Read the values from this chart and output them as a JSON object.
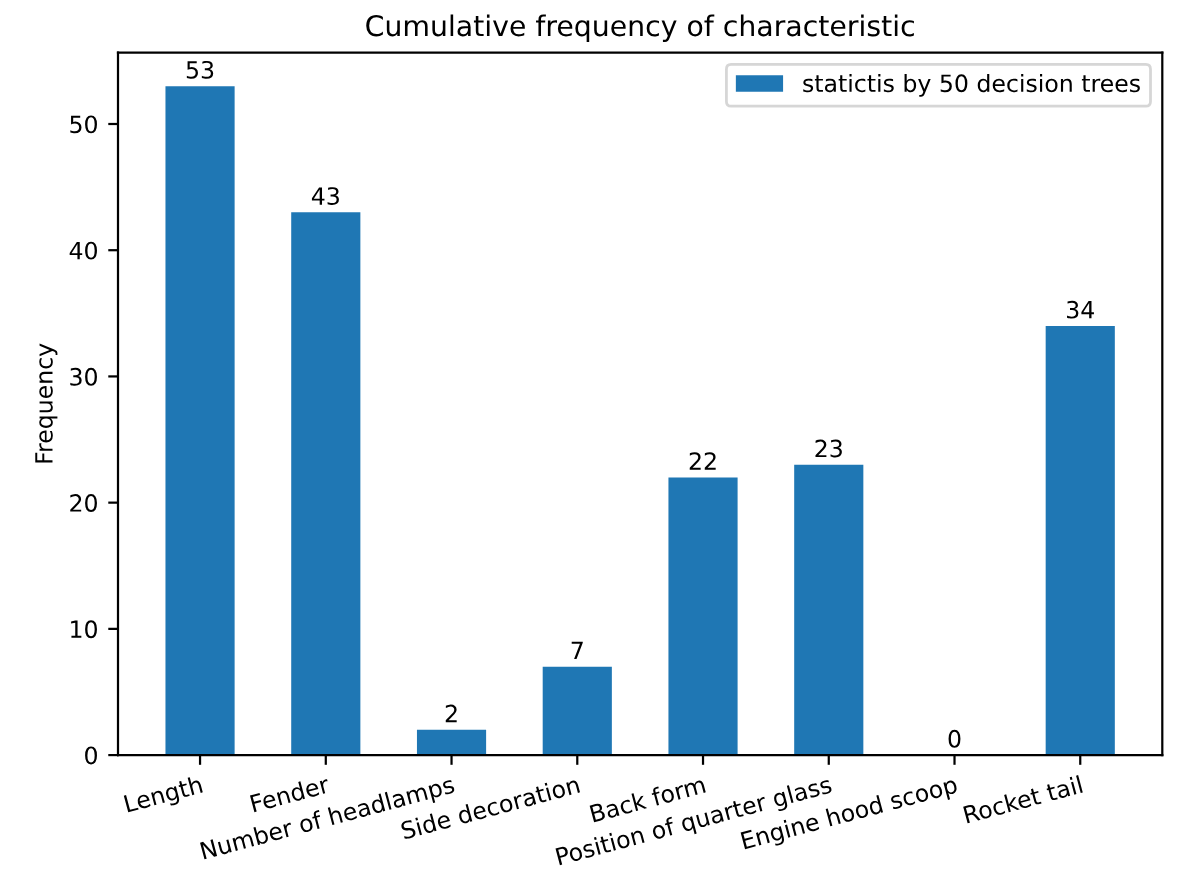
{
  "chart_data": {
    "type": "bar",
    "title": "Cumulative frequency of characteristic",
    "ylabel": "Frequency",
    "categories": [
      "Length",
      "Fender",
      "Number of headlamps",
      "Side decoration",
      "Back form",
      "Position of quarter glass",
      "Engine hood scoop",
      "Rocket tail"
    ],
    "series": [
      {
        "name": "statictis by 50 decision trees",
        "color": "#1f77b4",
        "values": [
          53,
          43,
          2,
          7,
          22,
          23,
          0,
          34
        ]
      }
    ],
    "ylim": [
      0,
      55.65
    ],
    "yticks": [
      0,
      10,
      20,
      30,
      40,
      50
    ],
    "data_labels": true,
    "legend": "top right",
    "grid": false
  }
}
